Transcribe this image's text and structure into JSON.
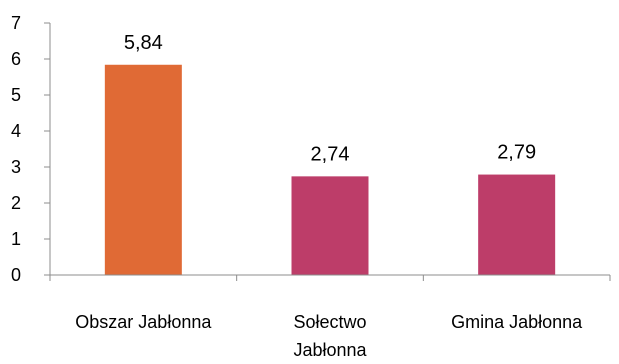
{
  "chart_data": {
    "type": "bar",
    "title": "",
    "xlabel": "",
    "ylabel": "",
    "ylim": [
      0,
      7
    ],
    "yticks": [
      0,
      1,
      2,
      3,
      4,
      5,
      6,
      7
    ],
    "grid": false,
    "legend": "none",
    "categories": [
      {
        "lines": [
          "Obszar Jabłonna"
        ]
      },
      {
        "lines": [
          "Sołectwo",
          "Jabłonna"
        ]
      },
      {
        "lines": [
          "Gmina Jabłonna"
        ]
      }
    ],
    "values": [
      5.84,
      2.74,
      2.79
    ],
    "value_labels": [
      "5,84",
      "2,74",
      "2,79"
    ],
    "colors": [
      "#E06A35",
      "#BD3D69",
      "#BD3D69"
    ],
    "axis_color": "#8C8C8C"
  }
}
